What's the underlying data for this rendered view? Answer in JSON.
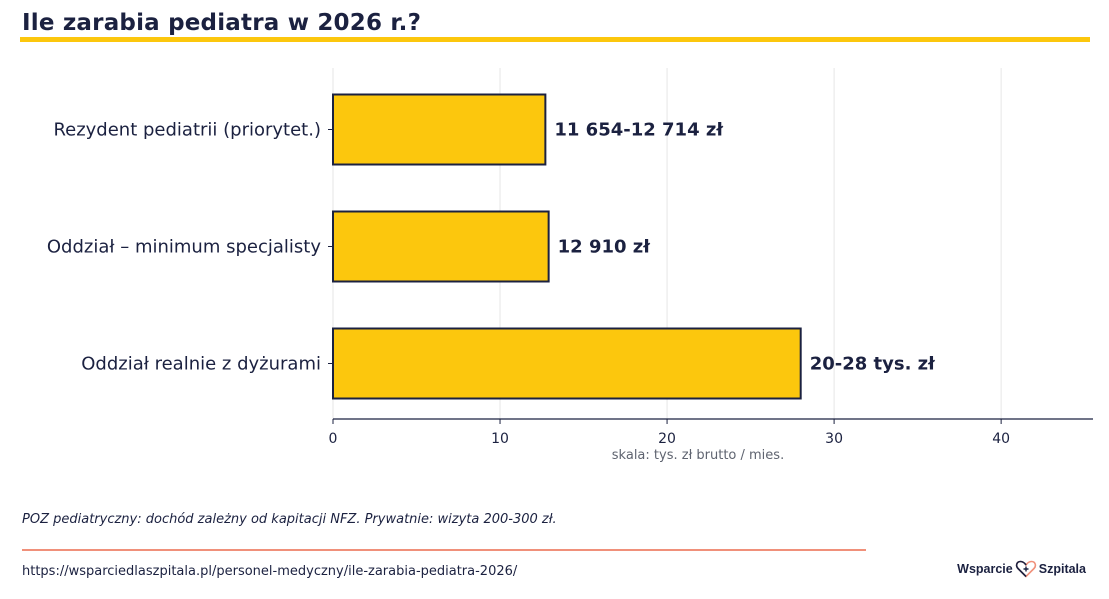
{
  "page": {
    "title": "Ile zarabia pediatra w 2026 r.?",
    "footnote": "POZ pediatryczny: dochód zależny od kapitacji NFZ. Prywatnie: wizyta 200-300 zł.",
    "url": "https://wsparciedlaszpitala.pl/personel-medyczny/ile-zarabia-pediatra-2026/",
    "logo": {
      "left_text": "Wsparcie",
      "right_text": "Szpitala",
      "icon": "heart-cross-icon"
    }
  },
  "colors": {
    "title": "#1b2140",
    "accent_bar": "#fcc70d",
    "bar_fill": "#fcc70d",
    "bar_stroke": "#1b2140",
    "footer_rule": "#f0907a",
    "logo_heart": "#f0907a",
    "grid": "#e6e6e6",
    "axis_label": "#5f6470"
  },
  "chart_data": {
    "type": "bar",
    "orientation": "horizontal",
    "title": "Ile zarabia pediatra w 2026 r.?",
    "categories": [
      "Rezydent pediatrii (priorytet.)",
      "Oddział – minimum specjalisty",
      "Oddział realnie z dyżurami"
    ],
    "values": [
      12.714,
      12.91,
      28
    ],
    "data_labels": [
      "11 654-12 714 zł",
      "12 910 zł",
      "20-28 tys. zł"
    ],
    "xlabel": "skala: tys. zł brutto / mies.",
    "ylabel": "",
    "xlim": [
      0,
      45.5
    ],
    "xticks": [
      0,
      10,
      20,
      30,
      40
    ],
    "grid": "vertical"
  }
}
